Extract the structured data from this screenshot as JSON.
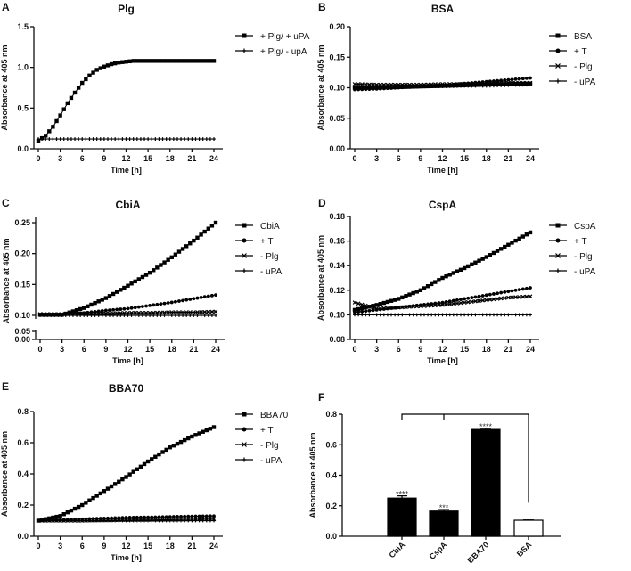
{
  "chart_data": [
    {
      "panel": "A",
      "type": "line",
      "title": "Plg",
      "xlabel": "Time [h]",
      "ylabel": "Absorbance at 405 nm",
      "xlim": [
        0,
        24
      ],
      "xticks": [
        "0",
        "3",
        "6",
        "9",
        "12",
        "15",
        "18",
        "21",
        "24"
      ],
      "ylim": [
        0,
        1.5
      ],
      "yticks": [
        "0.0",
        "0.5",
        "1.0",
        "1.5"
      ],
      "x": [
        0,
        1,
        2,
        3,
        4,
        5,
        6,
        7,
        8,
        9,
        10,
        11,
        12,
        13,
        14,
        15,
        16,
        17,
        18,
        19,
        20,
        21,
        22,
        23,
        24
      ],
      "series": [
        {
          "name": "+ Plg/ + uPA",
          "marker": "square",
          "values": [
            0.1,
            0.16,
            0.27,
            0.41,
            0.56,
            0.69,
            0.81,
            0.9,
            0.97,
            1.01,
            1.04,
            1.06,
            1.07,
            1.08,
            1.08,
            1.08,
            1.08,
            1.08,
            1.08,
            1.08,
            1.08,
            1.08,
            1.08,
            1.08,
            1.08
          ]
        },
        {
          "name": "+ Plg/ - upA",
          "marker": "plus",
          "values": [
            0.12,
            0.12,
            0.12,
            0.12,
            0.12,
            0.12,
            0.12,
            0.12,
            0.12,
            0.12,
            0.12,
            0.12,
            0.12,
            0.12,
            0.12,
            0.12,
            0.12,
            0.12,
            0.12,
            0.12,
            0.12,
            0.12,
            0.12,
            0.12,
            0.12
          ]
        }
      ]
    },
    {
      "panel": "B",
      "type": "line",
      "title": "BSA",
      "xlabel": "Time [h]",
      "ylabel": "Absorbance at 405 nm",
      "xlim": [
        0,
        24
      ],
      "xticks": [
        "0",
        "3",
        "6",
        "9",
        "12",
        "15",
        "18",
        "21",
        "24"
      ],
      "ylim": [
        0,
        0.2
      ],
      "yticks": [
        "0.00",
        "0.05",
        "0.10",
        "0.15",
        "0.20"
      ],
      "x": [
        0,
        3,
        6,
        9,
        12,
        15,
        18,
        21,
        24
      ],
      "series": [
        {
          "name": "BSA",
          "marker": "square",
          "values": [
            0.1,
            0.1,
            0.101,
            0.102,
            0.103,
            0.104,
            0.105,
            0.106,
            0.107
          ]
        },
        {
          "name": "+ T",
          "marker": "circle",
          "values": [
            0.097,
            0.098,
            0.1,
            0.102,
            0.104,
            0.107,
            0.11,
            0.113,
            0.116
          ]
        },
        {
          "name": "- Plg",
          "marker": "x",
          "values": [
            0.106,
            0.105,
            0.105,
            0.105,
            0.106,
            0.106,
            0.107,
            0.108,
            0.108
          ]
        },
        {
          "name": "- uPA",
          "marker": "plus",
          "values": [
            0.101,
            0.101,
            0.101,
            0.102,
            0.102,
            0.103,
            0.103,
            0.104,
            0.105
          ]
        }
      ]
    },
    {
      "panel": "C",
      "type": "line",
      "title": "CbiA",
      "xlabel": "Time [h]",
      "ylabel": "Absorbance at 405 nm",
      "xlim": [
        0,
        24
      ],
      "xticks": [
        "0",
        "3",
        "6",
        "9",
        "12",
        "15",
        "18",
        "21",
        "24"
      ],
      "ylim": [
        0,
        0.25
      ],
      "axis_break": [
        0.05,
        0.095
      ],
      "yticks": [
        "0.00",
        "0.05",
        "0.10",
        "0.15",
        "0.20",
        "0.25"
      ],
      "x": [
        0,
        3,
        6,
        9,
        12,
        15,
        18,
        21,
        24
      ],
      "series": [
        {
          "name": "CbiA",
          "marker": "square",
          "values": [
            0.101,
            0.101,
            0.112,
            0.128,
            0.148,
            0.169,
            0.194,
            0.221,
            0.25
          ]
        },
        {
          "name": "+ T",
          "marker": "circle",
          "values": [
            0.101,
            0.101,
            0.104,
            0.108,
            0.111,
            0.116,
            0.121,
            0.127,
            0.133
          ]
        },
        {
          "name": "- Plg",
          "marker": "x",
          "values": [
            0.102,
            0.102,
            0.103,
            0.103,
            0.104,
            0.104,
            0.105,
            0.105,
            0.106
          ]
        },
        {
          "name": "- uPA",
          "marker": "plus",
          "values": [
            0.1,
            0.1,
            0.1,
            0.1,
            0.1,
            0.1,
            0.1,
            0.1,
            0.1
          ]
        }
      ]
    },
    {
      "panel": "D",
      "type": "line",
      "title": "CspA",
      "xlabel": "Time [h]",
      "ylabel": "Absorbance at 405 nm",
      "xlim": [
        0,
        24
      ],
      "xticks": [
        "0",
        "3",
        "6",
        "9",
        "12",
        "15",
        "18",
        "21",
        "24"
      ],
      "ylim": [
        0.08,
        0.18
      ],
      "yticks": [
        "0.08",
        "0.10",
        "0.12",
        "0.14",
        "0.16",
        "0.18"
      ],
      "x": [
        0,
        3,
        6,
        9,
        12,
        15,
        18,
        21,
        24
      ],
      "series": [
        {
          "name": "CspA",
          "marker": "square",
          "values": [
            0.104,
            0.108,
            0.113,
            0.12,
            0.13,
            0.138,
            0.147,
            0.157,
            0.167
          ]
        },
        {
          "name": "+ T",
          "marker": "circle",
          "values": [
            0.102,
            0.104,
            0.106,
            0.108,
            0.11,
            0.113,
            0.116,
            0.119,
            0.122
          ]
        },
        {
          "name": "- Plg",
          "marker": "x",
          "values": [
            0.11,
            0.105,
            0.106,
            0.107,
            0.108,
            0.11,
            0.112,
            0.114,
            0.115
          ]
        },
        {
          "name": "- uPA",
          "marker": "plus",
          "values": [
            0.1,
            0.1,
            0.1,
            0.1,
            0.1,
            0.1,
            0.1,
            0.1,
            0.1
          ]
        }
      ]
    },
    {
      "panel": "E",
      "type": "line",
      "title": "BBA70",
      "xlabel": "Time [h]",
      "ylabel": "Absorbance at 405 nm",
      "xlim": [
        0,
        24
      ],
      "xticks": [
        "0",
        "3",
        "6",
        "9",
        "12",
        "15",
        "18",
        "21",
        "24"
      ],
      "ylim": [
        0,
        0.8
      ],
      "yticks": [
        "0.0",
        "0.2",
        "0.4",
        "0.6",
        "0.8"
      ],
      "x": [
        0,
        3,
        6,
        9,
        12,
        15,
        18,
        21,
        24
      ],
      "series": [
        {
          "name": "BBA70",
          "marker": "square",
          "values": [
            0.1,
            0.13,
            0.2,
            0.29,
            0.38,
            0.48,
            0.57,
            0.64,
            0.7
          ]
        },
        {
          "name": "+ T",
          "marker": "circle",
          "values": [
            0.1,
            0.105,
            0.11,
            0.115,
            0.12,
            0.122,
            0.125,
            0.128,
            0.13
          ]
        },
        {
          "name": "- Plg",
          "marker": "x",
          "values": [
            0.1,
            0.1,
            0.1,
            0.102,
            0.104,
            0.105,
            0.106,
            0.108,
            0.11
          ]
        },
        {
          "name": "- uPA",
          "marker": "plus",
          "values": [
            0.1,
            0.1,
            0.1,
            0.1,
            0.1,
            0.1,
            0.1,
            0.1,
            0.1
          ]
        }
      ]
    },
    {
      "panel": "F",
      "type": "bar",
      "title": "",
      "xlabel": "",
      "ylabel": "Absorbance at 405 nm",
      "ylim": [
        0,
        0.8
      ],
      "yticks": [
        "0.0",
        "0.2",
        "0.4",
        "0.6",
        "0.8"
      ],
      "categories": [
        "CbiA",
        "CspA",
        "BBA70",
        "BSA"
      ],
      "values": [
        0.25,
        0.165,
        0.7,
        0.105
      ],
      "errors": [
        0.015,
        0.01,
        0.008,
        0.002
      ],
      "fills": [
        "#000000",
        "#000000",
        "#000000",
        "#ffffff"
      ],
      "annotations": [
        "****",
        "***",
        "****",
        ""
      ],
      "comparison": "all vs BSA"
    }
  ]
}
